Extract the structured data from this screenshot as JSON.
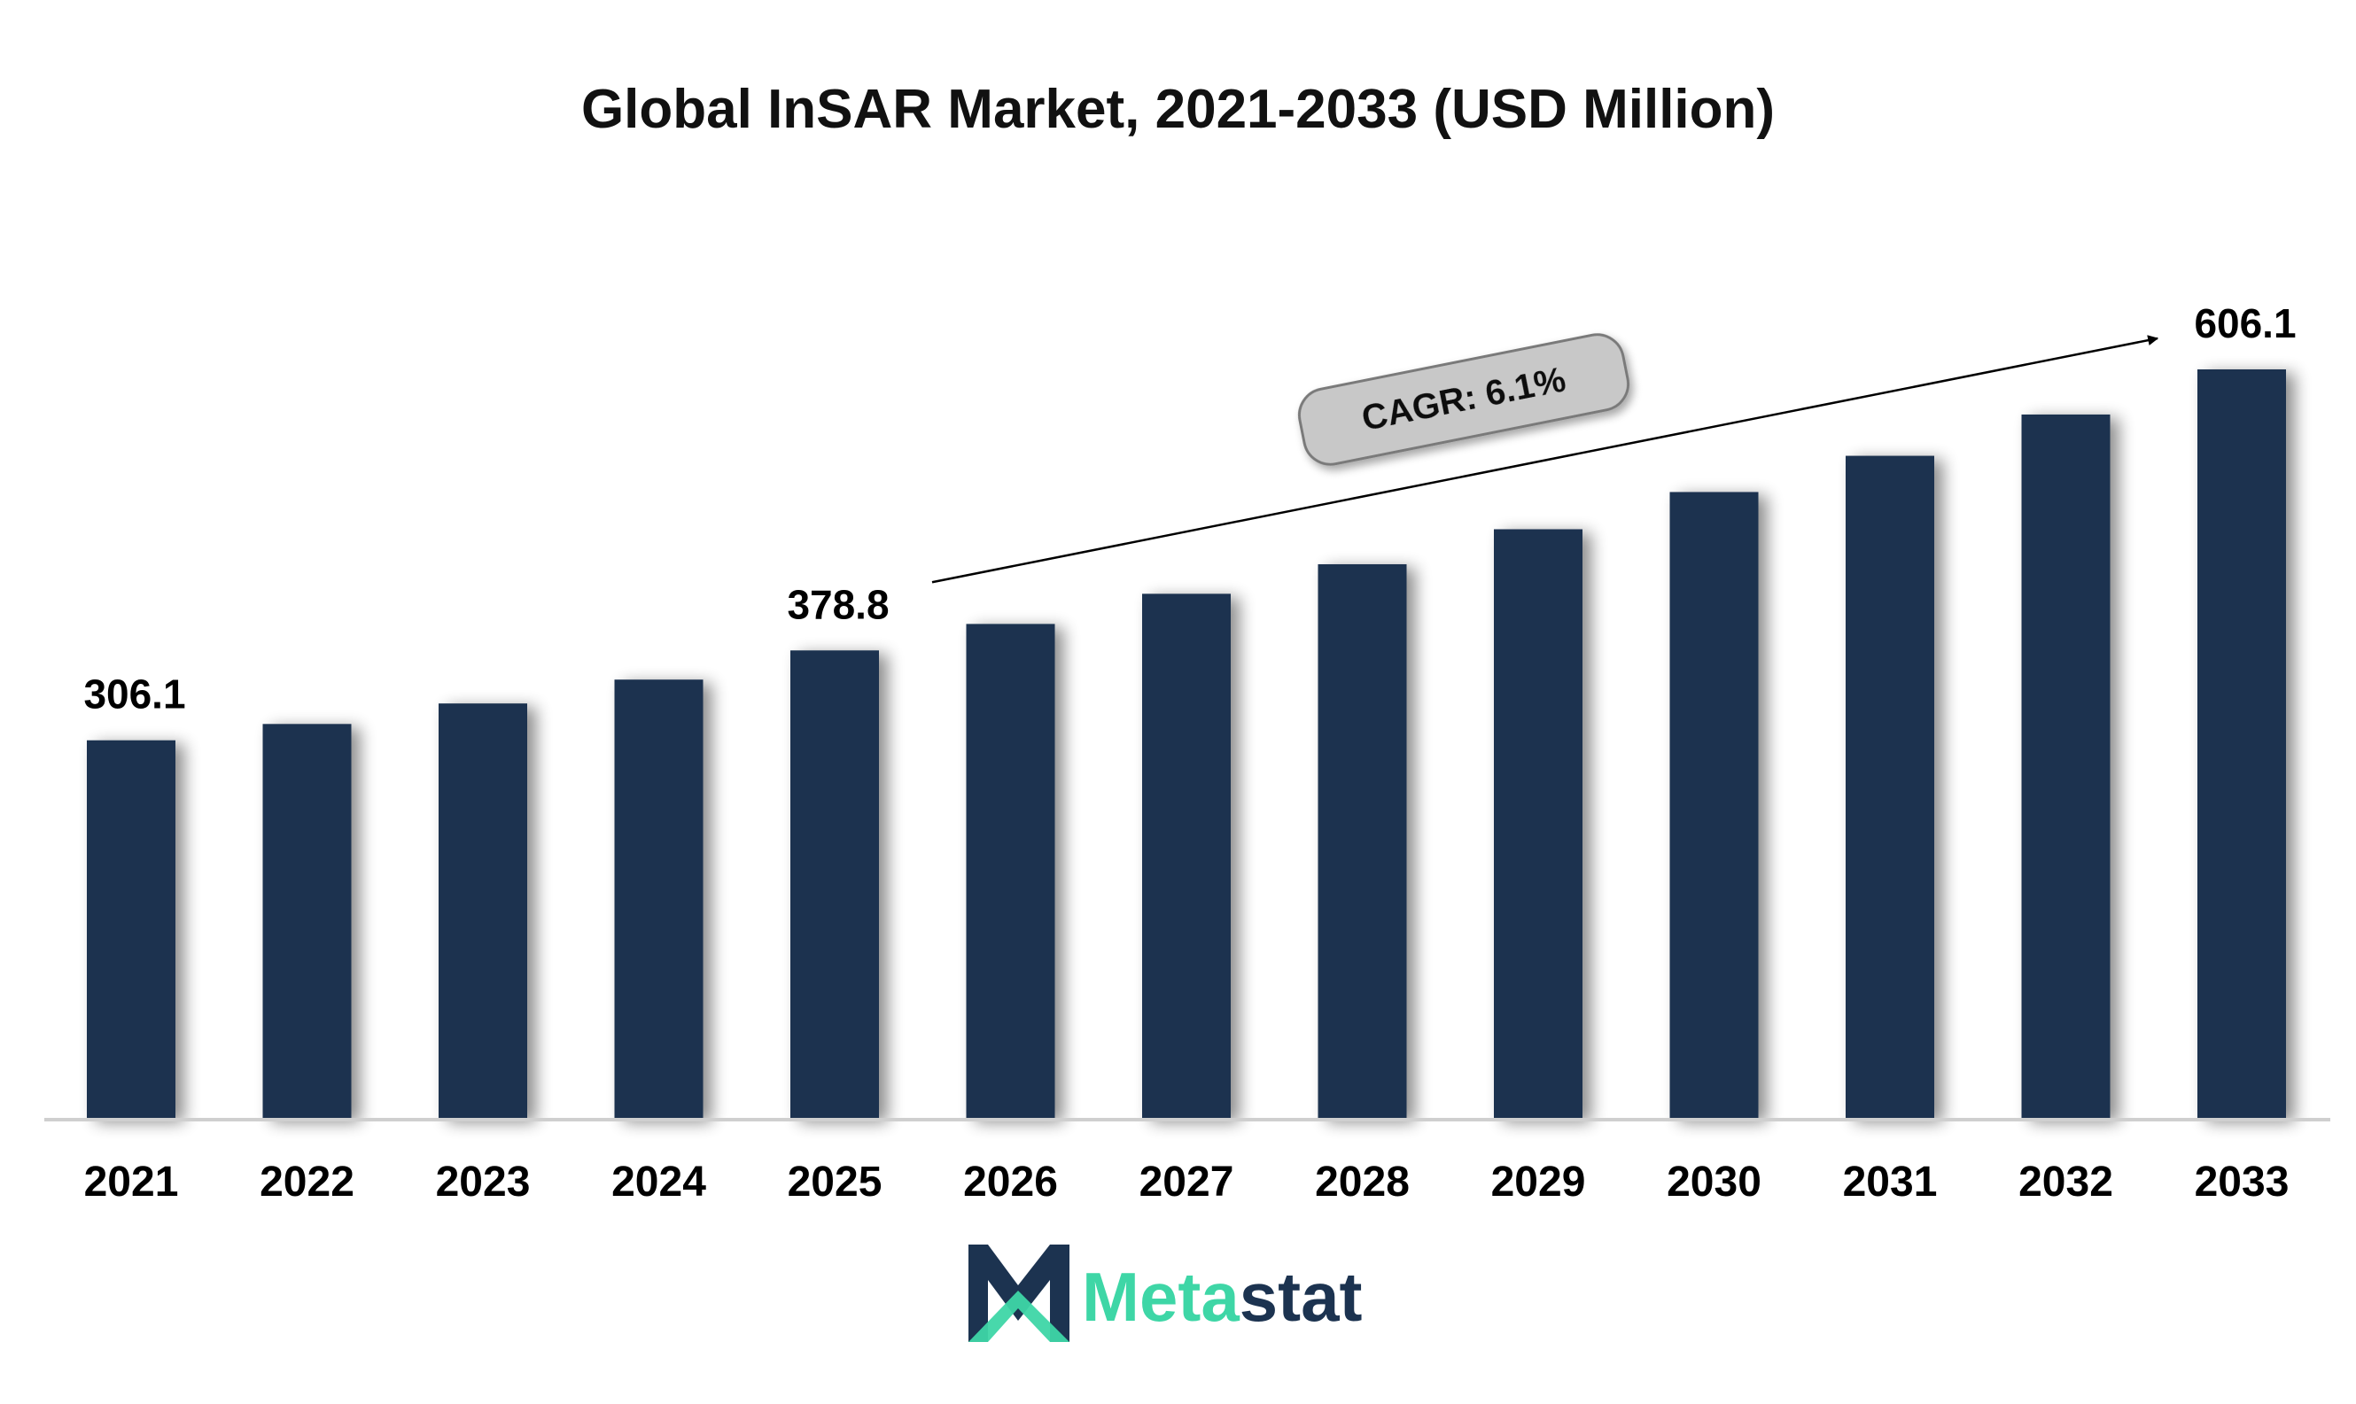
{
  "chart_data": {
    "type": "bar",
    "title": "Global InSAR Market, 2021-2033 (USD Million)",
    "xlabel": "",
    "ylabel": "",
    "categories": [
      "2021",
      "2022",
      "2023",
      "2024",
      "2025",
      "2026",
      "2027",
      "2028",
      "2029",
      "2030",
      "2031",
      "2032",
      "2033"
    ],
    "values": [
      306.1,
      319.3,
      335.9,
      355.2,
      378.8,
      400.2,
      424.6,
      448.5,
      476.8,
      506.9,
      536.2,
      569.6,
      606.1
    ],
    "data_labels": [
      {
        "category": "2021",
        "text": "306.1"
      },
      {
        "category": "2025",
        "text": "378.8"
      },
      {
        "category": "2033",
        "text": "606.1"
      }
    ],
    "ylim": [
      0,
      700
    ],
    "grid": false,
    "legend": "none",
    "bar_color": "#1c3350",
    "annotation": {
      "text": "CAGR: 6.1%",
      "from_category": "2025",
      "to_category": "2033"
    }
  },
  "logo": {
    "prefix": "Meta",
    "suffix": "stat",
    "prefix_color": "#3ed6a6",
    "suffix_color": "#1c3350"
  },
  "colors": {
    "axis": "#cfcfcf",
    "cagr_fill": "#c8c8c8",
    "cagr_stroke": "#7a7a7a"
  }
}
